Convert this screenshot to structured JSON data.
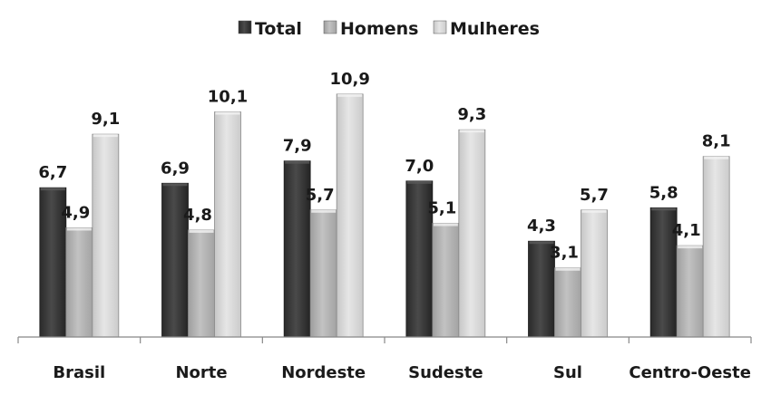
{
  "chart_data": {
    "type": "bar",
    "title": "",
    "xlabel": "",
    "ylabel": "",
    "ylim": [
      0,
      12
    ],
    "grid": false,
    "legend_position": "top",
    "categories": [
      "Brasil",
      "Norte",
      "Nordeste",
      "Sudeste",
      "Sul",
      "Centro-Oeste"
    ],
    "series": [
      {
        "name": "Total",
        "color": "#3a3a3a",
        "values": [
          6.7,
          6.9,
          7.9,
          7.0,
          4.3,
          5.8
        ],
        "labels": [
          "6,7",
          "6,9",
          "7,9",
          "7,0",
          "4,3",
          "5,8"
        ]
      },
      {
        "name": "Homens",
        "color": "#b3b3b3",
        "values": [
          4.9,
          4.8,
          5.7,
          5.1,
          3.1,
          4.1
        ],
        "labels": [
          "4,9",
          "4,8",
          "5,7",
          "5,1",
          "3,1",
          "4,1"
        ]
      },
      {
        "name": "Mulheres",
        "color": "#d6d6d6",
        "values": [
          9.1,
          10.1,
          10.9,
          9.3,
          5.7,
          8.1
        ],
        "labels": [
          "9,1",
          "10,1",
          "10,9",
          "9,3",
          "5,7",
          "8,1"
        ]
      }
    ]
  }
}
